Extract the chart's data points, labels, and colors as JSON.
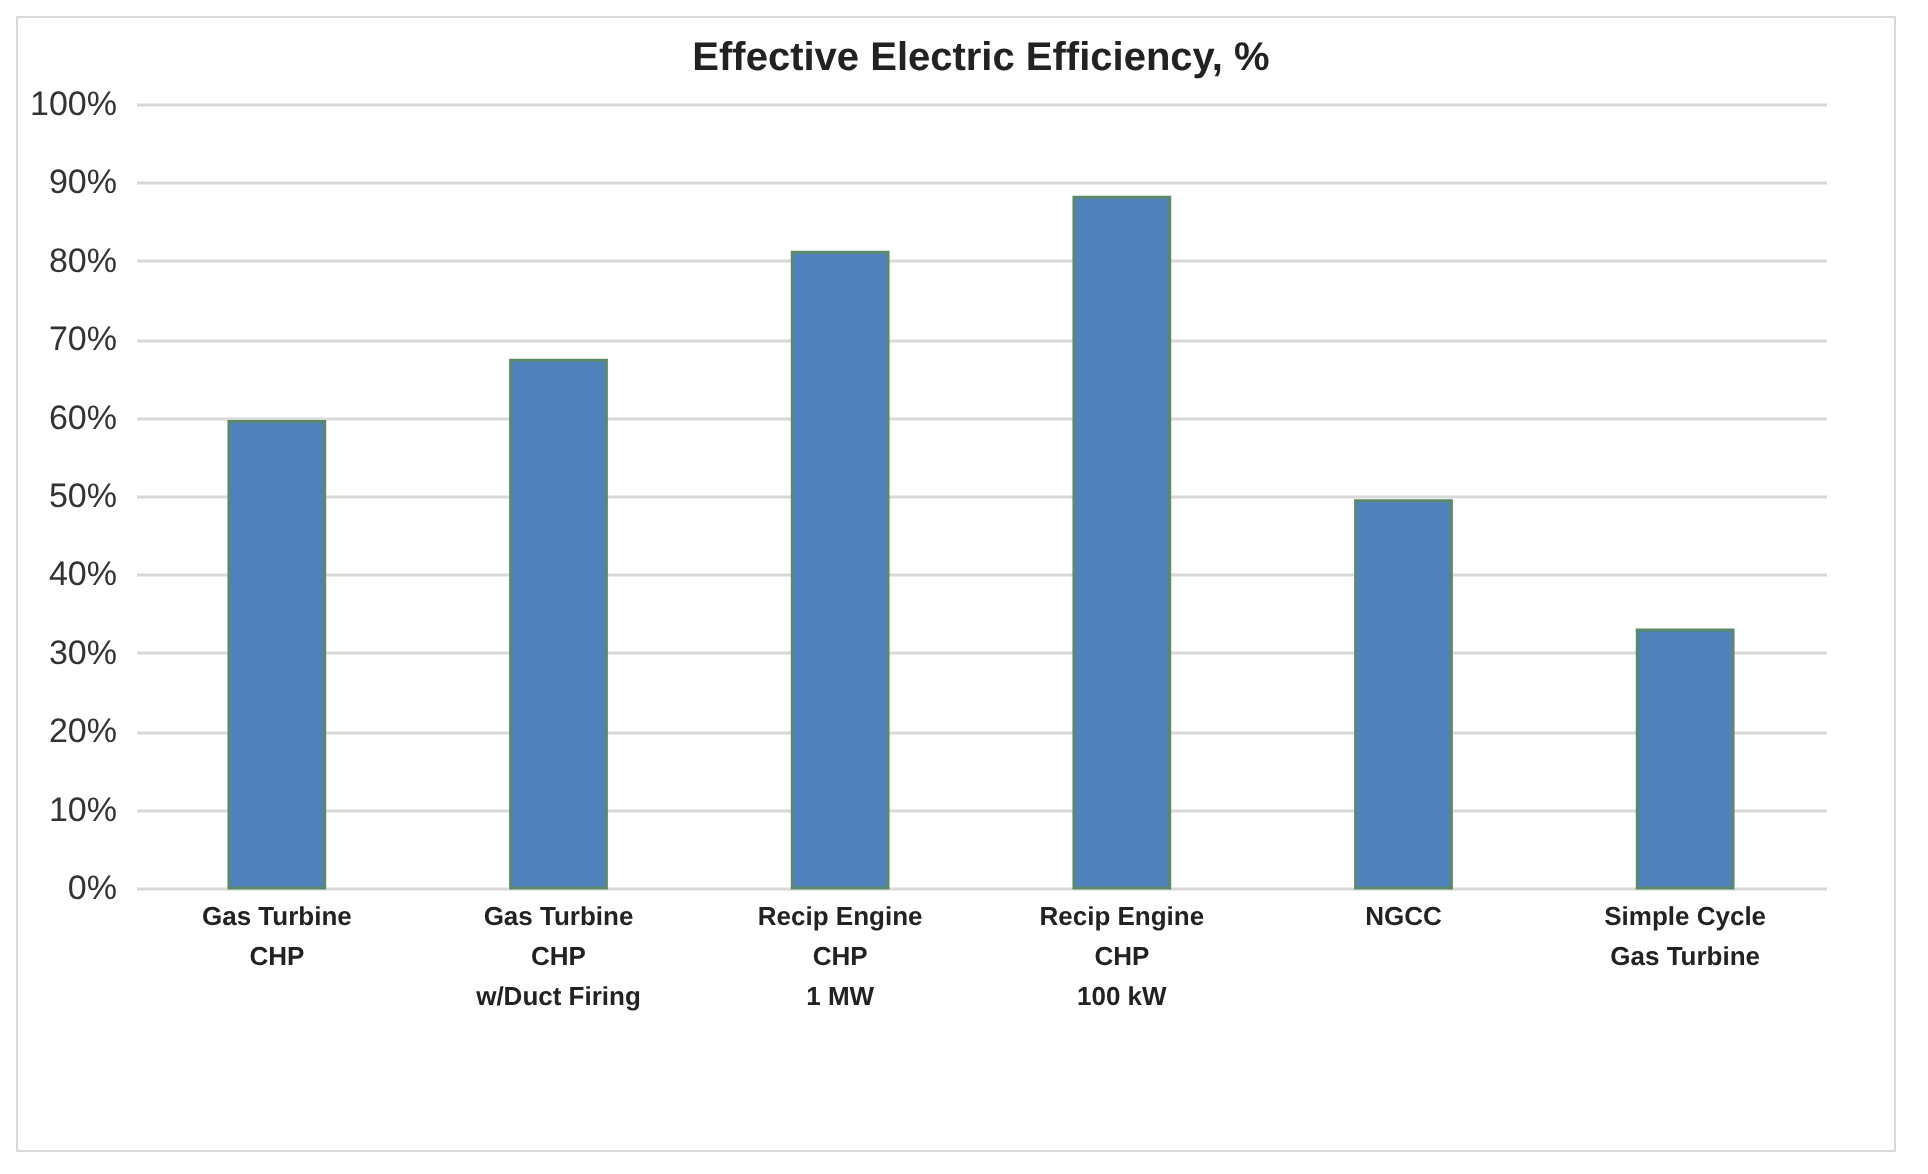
{
  "chart_data": {
    "type": "bar",
    "title": "Effective Electric Efficiency, %",
    "categories": [
      "Gas Turbine\nCHP",
      "Gas Turbine\nCHP\nw/Duct Firing",
      "Recip Engine\nCHP\n1 MW",
      "Recip Engine\nCHP\n100 kW",
      "NGCC",
      "Simple Cycle\nGas Turbine"
    ],
    "values": [
      59.5,
      67.3,
      81.1,
      88.1,
      49.4,
      32.9
    ],
    "color": "#4f81bd",
    "ylim": [
      0,
      100
    ],
    "yticks": [
      {
        "value": 0,
        "label": "0%"
      },
      {
        "value": 10,
        "label": "10%"
      },
      {
        "value": 20,
        "label": "20%"
      },
      {
        "value": 30,
        "label": "30%"
      },
      {
        "value": 40,
        "label": "40%"
      },
      {
        "value": 50,
        "label": "50%"
      },
      {
        "value": 60,
        "label": "60%"
      },
      {
        "value": 70,
        "label": "70%"
      },
      {
        "value": 80,
        "label": "80%"
      },
      {
        "value": 90,
        "label": "90%"
      },
      {
        "value": 100,
        "label": "100%"
      }
    ],
    "grid": "y"
  }
}
